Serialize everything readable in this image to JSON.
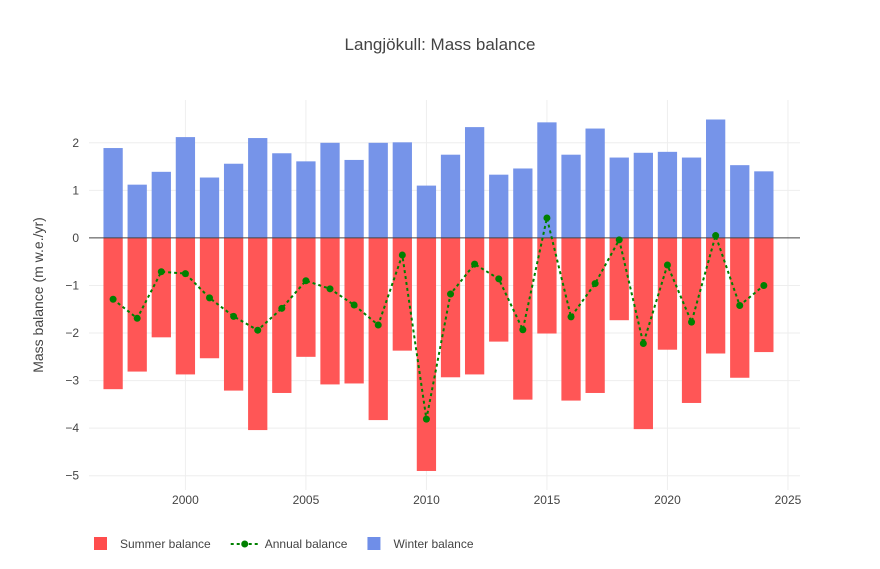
{
  "chart_data": {
    "type": "bar",
    "title": "Langjökull: Mass balance",
    "xlabel": "",
    "ylabel": "Mass balance (m w.e./yr)",
    "xlim": [
      1996,
      2025.5
    ],
    "ylim": [
      -5.3,
      2.9
    ],
    "x_ticks": [
      2000,
      2005,
      2010,
      2015,
      2020,
      2025
    ],
    "y_ticks": [
      -5,
      -4,
      -3,
      -2,
      -1,
      0,
      1,
      2
    ],
    "grid": true,
    "legend_position": "bottom-left",
    "x": [
      1997,
      1998,
      1999,
      2000,
      2001,
      2002,
      2003,
      2004,
      2005,
      2006,
      2007,
      2008,
      2009,
      2010,
      2011,
      2012,
      2013,
      2014,
      2015,
      2016,
      2017,
      2018,
      2019,
      2020,
      2021,
      2022,
      2023,
      2024
    ],
    "series": [
      {
        "name": "Summer balance",
        "type": "bar",
        "color": "#ff4d4d",
        "values": [
          -3.18,
          -2.81,
          -2.09,
          -2.87,
          -2.53,
          -3.21,
          -4.04,
          -3.26,
          -2.5,
          -3.08,
          -3.06,
          -3.83,
          -2.37,
          -4.9,
          -2.93,
          -2.87,
          -2.18,
          -3.4,
          -2.01,
          -3.42,
          -3.26,
          -1.73,
          -4.02,
          -2.35,
          -3.47,
          -2.43,
          -2.94,
          -2.4
        ]
      },
      {
        "name": "Annual balance",
        "type": "line",
        "color": "#008000",
        "values": [
          -1.29,
          -1.69,
          -0.71,
          -0.75,
          -1.26,
          -1.65,
          -1.94,
          -1.48,
          -0.9,
          -1.07,
          -1.41,
          -1.83,
          -0.36,
          -3.81,
          -1.18,
          -0.55,
          -0.86,
          -1.93,
          0.42,
          -1.66,
          -0.96,
          -0.04,
          -2.22,
          -0.57,
          -1.77,
          0.05,
          -1.42,
          -1.0
        ]
      },
      {
        "name": "Winter balance",
        "type": "bar",
        "color": "#6f8ee8",
        "values": [
          1.89,
          1.12,
          1.39,
          2.12,
          1.27,
          1.56,
          2.1,
          1.78,
          1.61,
          2.0,
          1.64,
          2.0,
          2.01,
          1.1,
          1.75,
          2.33,
          1.33,
          1.46,
          2.43,
          1.75,
          2.3,
          1.69,
          1.79,
          1.81,
          1.69,
          2.49,
          1.53,
          1.4
        ]
      }
    ]
  }
}
